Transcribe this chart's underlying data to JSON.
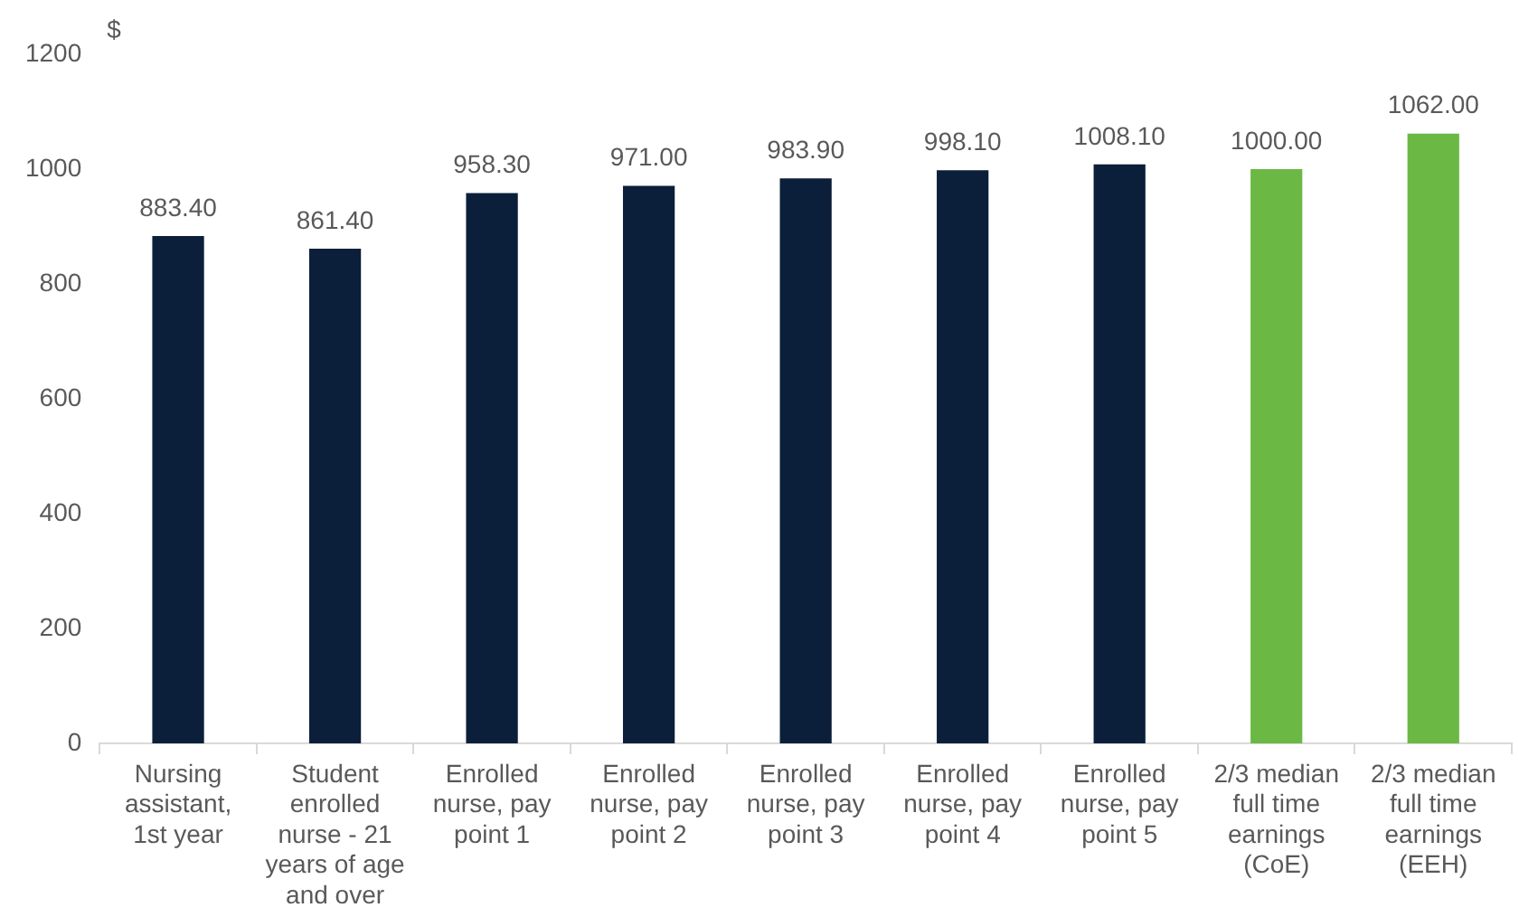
{
  "chart_data": {
    "type": "bar",
    "ylabel": "$",
    "categories": [
      "Nursing assistant, 1st year",
      "Student enrolled nurse - 21 years of age and over",
      "Enrolled nurse, pay point 1",
      "Enrolled nurse, pay point 2",
      "Enrolled nurse, pay point 3",
      "Enrolled nurse, pay point 4",
      "Enrolled nurse, pay point 5",
      "2/3 median full time earnings (CoE)",
      "2/3 median full time earnings (EEH)"
    ],
    "values": [
      883.4,
      861.4,
      958.3,
      971,
      983.9,
      998.1,
      1008.1,
      1000,
      1062
    ],
    "colors": [
      "#0b1f3a",
      "#0b1f3a",
      "#0b1f3a",
      "#0b1f3a",
      "#0b1f3a",
      "#0b1f3a",
      "#0b1f3a",
      "#6bb944",
      "#6bb944"
    ],
    "value_labels": [
      "883.40",
      "861.40",
      "958.30",
      "971.00",
      "983.90",
      "998.10",
      "1008.10",
      "1000.00",
      "1062.00"
    ],
    "ylim": [
      0,
      1200
    ],
    "yticks": [
      0,
      200,
      400,
      600,
      800,
      1000,
      1200
    ],
    "grid": false,
    "legend": false
  }
}
